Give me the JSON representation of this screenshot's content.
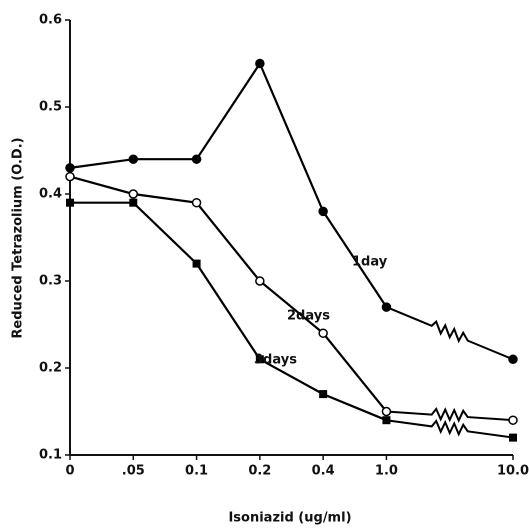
{
  "chart_data": {
    "type": "line",
    "x_label": "Isoniazid  (ug/ml)",
    "y_label": "Reduced Tetrazolium (O.D.)",
    "categories": [
      "0",
      ".05",
      "0.1",
      "0.2",
      "0.4",
      "1.0",
      null,
      "10.0"
    ],
    "series": [
      {
        "name": "1day",
        "color": "#000000",
        "marker": "filled-circle",
        "values": [
          0.43,
          0.44,
          0.44,
          0.55,
          0.38,
          0.27,
          null,
          0.21
        ]
      },
      {
        "name": "2days",
        "color": "#000000",
        "marker": "open-circle",
        "values": [
          0.42,
          0.4,
          0.39,
          0.3,
          0.24,
          0.15,
          null,
          0.14
        ]
      },
      {
        "name": "3days",
        "color": "#000000",
        "marker": "filled-square",
        "values": [
          0.39,
          0.39,
          0.32,
          0.21,
          0.17,
          0.14,
          null,
          0.12
        ]
      }
    ],
    "ylim": [
      0.1,
      0.6
    ],
    "yticks": [
      0.1,
      0.2,
      0.3,
      0.4,
      0.5,
      0.6
    ],
    "grid": false
  }
}
